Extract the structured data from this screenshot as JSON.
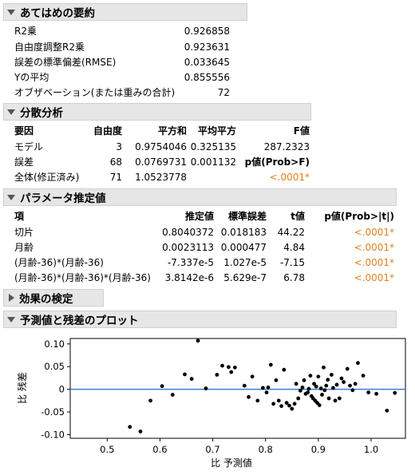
{
  "summary": {
    "title": "あてはめの要約",
    "rows": [
      {
        "label": "R2乗",
        "value": "0.926858"
      },
      {
        "label": "自由度調整R2乗",
        "value": "0.923631"
      },
      {
        "label": "誤差の標準偏差(RMSE)",
        "value": "0.033645"
      },
      {
        "label": "Yの平均",
        "value": "0.855556"
      },
      {
        "label": "オブザベーション(または重みの合計)",
        "value": "72"
      }
    ]
  },
  "anova": {
    "title": "分散分析",
    "headers": [
      "要因",
      "自由度",
      "平方和",
      "平均平方",
      "F値"
    ],
    "rows": [
      {
        "source": "モデル",
        "df": "3",
        "ss": "0.9754046",
        "ms": "0.325135",
        "f": "287.2323"
      },
      {
        "source": "誤差",
        "df": "68",
        "ss": "0.0769731",
        "ms": "0.001132",
        "f": "p値(Prob>F)"
      },
      {
        "source": "全体(修正済み)",
        "df": "71",
        "ss": "1.0523778",
        "ms": "",
        "f": "<.0001*"
      }
    ]
  },
  "params": {
    "title": "パラメータ推定値",
    "headers": [
      "項",
      "推定値",
      "標準誤差",
      "t値",
      "p値(Prob>|t|)"
    ],
    "rows": [
      {
        "term": "切片",
        "est": "0.8040372",
        "se": "0.018183",
        "t": "44.22",
        "p": "<.0001*"
      },
      {
        "term": "月齢",
        "est": "0.0023113",
        "se": "0.000477",
        "t": "4.84",
        "p": "<.0001*"
      },
      {
        "term": "(月齢-36)*(月齢-36)",
        "est": "-7.337e-5",
        "se": "1.027e-5",
        "t": "-7.15",
        "p": "<.0001*"
      },
      {
        "term": "(月齢-36)*(月齢-36)*(月齢-36)",
        "est": "3.8142e-6",
        "se": "5.629e-7",
        "t": "6.78",
        "p": "<.0001*"
      }
    ]
  },
  "effects": {
    "title": "効果の検定"
  },
  "plot": {
    "title": "予測値と残差のプロット",
    "xticks": [
      "0.5",
      "0.6",
      "0.7",
      "0.8",
      "0.9",
      "1.0"
    ],
    "yticks": [
      "0.10",
      "0.05",
      "0",
      "-0.05",
      "-0.10"
    ],
    "xlabel": "比 予測値",
    "ylabel": "比 残差"
  },
  "colors": {
    "accent_orange": "#e08020",
    "zero_line": "#3b7dd8",
    "header_bg": "#e6e6e6"
  },
  "chart_data": {
    "type": "scatter",
    "xlabel": "比 予測値",
    "ylabel": "比 残差",
    "xlim": [
      0.43,
      1.065
    ],
    "ylim": [
      -0.108,
      0.112
    ],
    "reference_line_y": 0,
    "x": [
      0.543,
      0.563,
      0.582,
      0.604,
      0.624,
      0.647,
      0.66,
      0.672,
      0.687,
      0.708,
      0.718,
      0.73,
      0.735,
      0.742,
      0.76,
      0.768,
      0.775,
      0.785,
      0.795,
      0.802,
      0.805,
      0.81,
      0.815,
      0.82,
      0.825,
      0.83,
      0.835,
      0.84,
      0.845,
      0.85,
      0.855,
      0.858,
      0.862,
      0.866,
      0.87,
      0.873,
      0.876,
      0.88,
      0.882,
      0.885,
      0.887,
      0.89,
      0.892,
      0.894,
      0.896,
      0.898,
      0.9,
      0.902,
      0.905,
      0.907,
      0.91,
      0.912,
      0.915,
      0.918,
      0.92,
      0.925,
      0.928,
      0.932,
      0.935,
      0.94,
      0.944,
      0.948,
      0.955,
      0.96,
      0.965,
      0.97,
      0.975,
      0.985,
      0.995,
      1.01,
      1.03,
      1.045
    ],
    "y": [
      -0.083,
      -0.093,
      -0.025,
      0.007,
      -0.012,
      0.033,
      0.023,
      0.107,
      0.002,
      0.032,
      0.052,
      0.049,
      0.038,
      0.048,
      0.008,
      -0.017,
      0.028,
      -0.025,
      0.003,
      -0.007,
      0.004,
      0.054,
      -0.032,
      0.02,
      -0.025,
      -0.037,
      0.043,
      -0.03,
      -0.036,
      -0.043,
      -0.032,
      0.012,
      -0.02,
      -0.003,
      0.004,
      0.02,
      -0.01,
      -0.007,
      0.001,
      0.03,
      -0.015,
      -0.02,
      0.012,
      -0.025,
      0.006,
      -0.03,
      0.028,
      -0.035,
      0.002,
      -0.012,
      0.048,
      -0.002,
      0.008,
      0.021,
      -0.02,
      0.032,
      0.003,
      -0.025,
      0.01,
      -0.02,
      0.024,
      0.016,
      0.045,
      0.008,
      -0.002,
      0.012,
      0.058,
      0.03,
      -0.007,
      -0.01,
      -0.047,
      -0.008
    ]
  }
}
